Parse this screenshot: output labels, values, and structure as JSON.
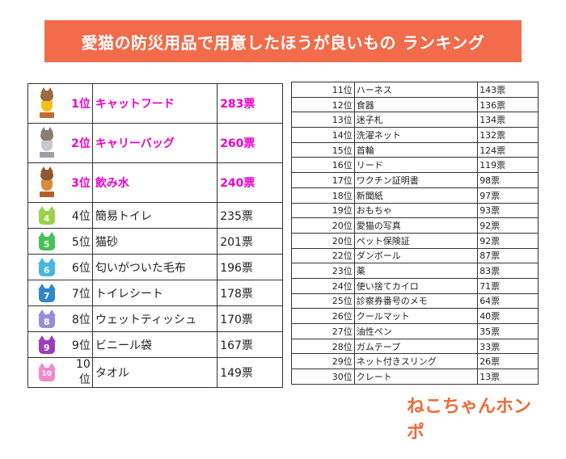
{
  "title": "愛猫の防災用品で用意したほうが良いもの ランキング",
  "logo": "ねこちゃんホンポ",
  "colors": {
    "banner": "#f26b4a",
    "highlight": "#ee00cc",
    "logo": "#ef6a3a"
  },
  "left_rows": [
    {
      "icon": "gold-trophy-cat-icon",
      "rank": "1位",
      "name": "キャットフード",
      "votes": "283票"
    },
    {
      "icon": "silver-trophy-cat-icon",
      "rank": "2位",
      "name": "キャリーバッグ",
      "votes": "260票"
    },
    {
      "icon": "bronze-trophy-cat-icon",
      "rank": "3位",
      "name": "飲み水",
      "votes": "240票"
    },
    {
      "icon": "cat-badge-4-icon",
      "icon_label": "4",
      "rank": "4位",
      "name": "簡易トイレ",
      "votes": "235票"
    },
    {
      "icon": "cat-badge-5-icon",
      "icon_label": "5",
      "rank": "5位",
      "name": "猫砂",
      "votes": "201票"
    },
    {
      "icon": "cat-badge-6-icon",
      "icon_label": "6",
      "rank": "6位",
      "name": "匂いがついた毛布",
      "votes": "196票"
    },
    {
      "icon": "cat-badge-7-icon",
      "icon_label": "7",
      "rank": "7位",
      "name": "トイレシート",
      "votes": "178票"
    },
    {
      "icon": "cat-badge-8-icon",
      "icon_label": "8",
      "rank": "8位",
      "name": "ウェットティッシュ",
      "votes": "170票"
    },
    {
      "icon": "cat-badge-9-icon",
      "icon_label": "9",
      "rank": "9位",
      "name": "ビニール袋",
      "votes": "167票"
    },
    {
      "icon": "cat-badge-10-icon",
      "icon_label": "10",
      "rank": "10位",
      "name": "タオル",
      "votes": "149票"
    }
  ],
  "right_rows": [
    {
      "rank": "11位",
      "name": "ハーネス",
      "votes": "143票"
    },
    {
      "rank": "12位",
      "name": "食器",
      "votes": "136票"
    },
    {
      "rank": "13位",
      "name": "迷子札",
      "votes": "134票"
    },
    {
      "rank": "14位",
      "name": "洗濯ネット",
      "votes": "132票"
    },
    {
      "rank": "15位",
      "name": "首輪",
      "votes": "124票"
    },
    {
      "rank": "16位",
      "name": "リード",
      "votes": "119票"
    },
    {
      "rank": "17位",
      "name": "ワクチン証明書",
      "votes": "98票"
    },
    {
      "rank": "18位",
      "name": "新聞紙",
      "votes": "97票"
    },
    {
      "rank": "19位",
      "name": "おもちゃ",
      "votes": "93票"
    },
    {
      "rank": "20位",
      "name": "愛猫の写真",
      "votes": "92票"
    },
    {
      "rank": "20位",
      "name": "ペット保険証",
      "votes": "92票"
    },
    {
      "rank": "22位",
      "name": "ダンボール",
      "votes": "87票"
    },
    {
      "rank": "23位",
      "name": "薬",
      "votes": "83票"
    },
    {
      "rank": "24位",
      "name": "使い捨てカイロ",
      "votes": "71票"
    },
    {
      "rank": "25位",
      "name": "診察券番号のメモ",
      "votes": "64票"
    },
    {
      "rank": "26位",
      "name": "クールマット",
      "votes": "40票"
    },
    {
      "rank": "27位",
      "name": "油性ペン",
      "votes": "35票"
    },
    {
      "rank": "28位",
      "name": "ガムテープ",
      "votes": "33票"
    },
    {
      "rank": "29位",
      "name": "ネット付きスリング",
      "votes": "26票"
    },
    {
      "rank": "30位",
      "name": "クレート",
      "votes": "13票"
    }
  ]
}
